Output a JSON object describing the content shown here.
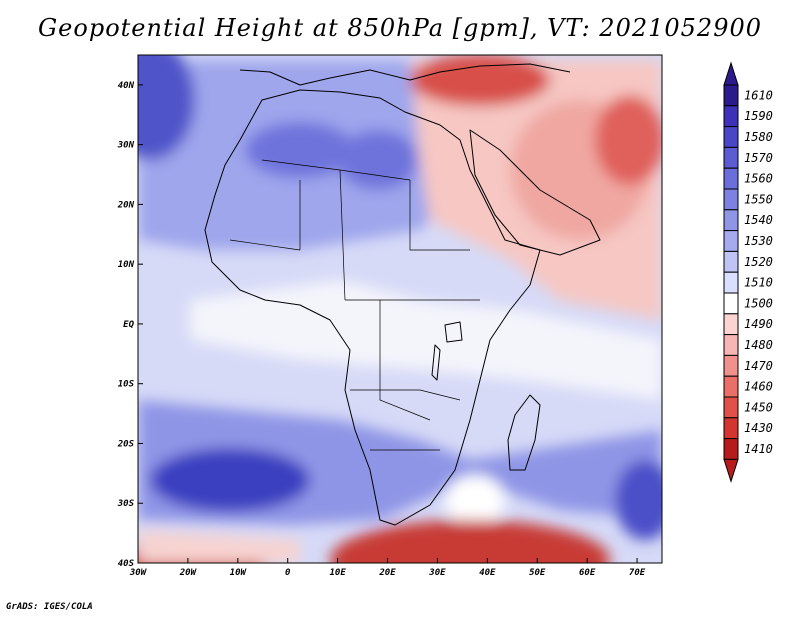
{
  "title": "Geopotential Height at 850hPa [gpm], VT: 2021052900",
  "credit": "GrADS: IGES/COLA",
  "map": {
    "variable": "Geopotential Height",
    "level": "850hPa",
    "units": "gpm",
    "valid_time": "2021052900",
    "region": "Africa and Middle East",
    "lon_range": [
      -30,
      75
    ],
    "lat_range": [
      -40,
      45
    ],
    "x_ticks": [
      "30W",
      "20W",
      "10W",
      "0",
      "10E",
      "20E",
      "30E",
      "40E",
      "50E",
      "60E",
      "70E"
    ],
    "y_ticks": [
      "40S",
      "30S",
      "20S",
      "10S",
      "EQ",
      "10N",
      "20N",
      "30N",
      "40N"
    ]
  },
  "colorbar": {
    "levels": [
      "1610",
      "1590",
      "1580",
      "1570",
      "1560",
      "1550",
      "1540",
      "1530",
      "1520",
      "1510",
      "1500",
      "1490",
      "1480",
      "1470",
      "1460",
      "1450",
      "1430",
      "1410"
    ],
    "colors": [
      "#2b1a8c",
      "#3c31b8",
      "#4a46c8",
      "#5b5bd4",
      "#6b6fdb",
      "#7d82e1",
      "#9096e6",
      "#a5abee",
      "#bfc4f5",
      "#dadeff",
      "#ffffff",
      "#fbd4d2",
      "#f7b6b3",
      "#f1918d",
      "#ea6f69",
      "#e2504a",
      "#d33530",
      "#b71c1c"
    ]
  }
}
